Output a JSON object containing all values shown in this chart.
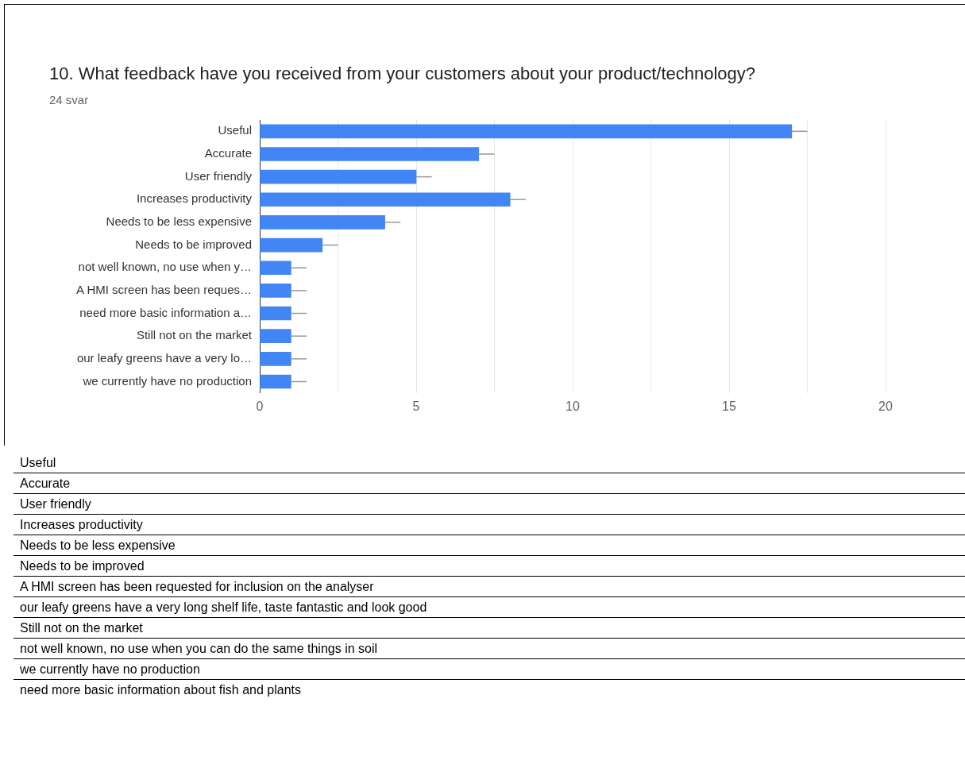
{
  "chart_data": {
    "type": "bar",
    "orientation": "horizontal",
    "title": "10. What feedback have you received from your customers about your product/technology?",
    "subtitle": "24 svar",
    "categories": [
      "Useful",
      "Accurate",
      "User friendly",
      "Increases productivity",
      "Needs to be less expensive",
      "Needs to be improved",
      "not well known, no use when y…",
      "A HMI screen has been reques…",
      "need more basic information a…",
      "Still not on the market",
      "our leafy greens have a very lo…",
      "we currently have no production"
    ],
    "values": [
      17,
      7,
      5,
      8,
      4,
      2,
      1,
      1,
      1,
      1,
      1,
      1
    ],
    "errors": [
      [
        17,
        17.5
      ],
      [
        7,
        7.5
      ],
      [
        5,
        5.5
      ],
      [
        8,
        8.5
      ],
      [
        4,
        4.5
      ],
      [
        2,
        2.5
      ],
      [
        1,
        1.5
      ],
      [
        1,
        1.5
      ],
      [
        1,
        1.5
      ],
      [
        1,
        1.5
      ],
      [
        1,
        1.5
      ],
      [
        1,
        1.5
      ]
    ],
    "color": "#4285f4",
    "xlim": [
      0,
      20
    ],
    "xticks": [
      0,
      {
        "value": 2.5,
        "label": null
      },
      5,
      {
        "value": 7.5,
        "label": null
      },
      10,
      {
        "value": 12.5,
        "label": null
      },
      15,
      {
        "value": 17.5,
        "label": null
      },
      20
    ],
    "grid": true,
    "annotations": [
      "Useful",
      "Accurate",
      "User friendly",
      "Increases productivity",
      "Needs to be less expensive",
      "Needs to be improved",
      "A HMI screen has been requested for inclusion on the analyser",
      "our leafy greens have a very long shelf life, taste fantastic and look good",
      "Still not on the market",
      "not well known, no use when you can do the same things in soil",
      "we currently have no production",
      "need more basic information about fish and plants"
    ]
  }
}
